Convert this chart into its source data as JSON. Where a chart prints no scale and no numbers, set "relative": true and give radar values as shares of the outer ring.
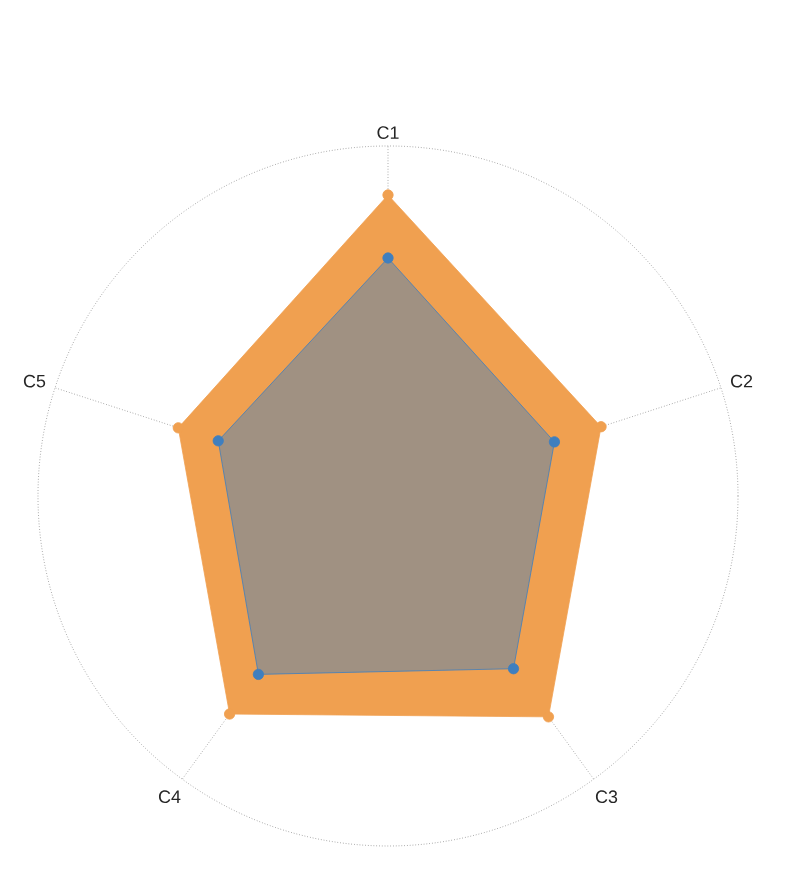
{
  "chart_data": {
    "type": "radar",
    "relative": true,
    "categories": [
      "C1",
      "C2",
      "C3",
      "C4",
      "C5"
    ],
    "marker": "circle",
    "grid": true,
    "series": [
      {
        "color": "#f0a050",
        "values": [
          0.86,
          0.64,
          0.78,
          0.77,
          0.63
        ]
      },
      {
        "color": "#3f7fbf",
        "values": [
          0.68,
          0.5,
          0.61,
          0.63,
          0.51
        ]
      }
    ]
  }
}
